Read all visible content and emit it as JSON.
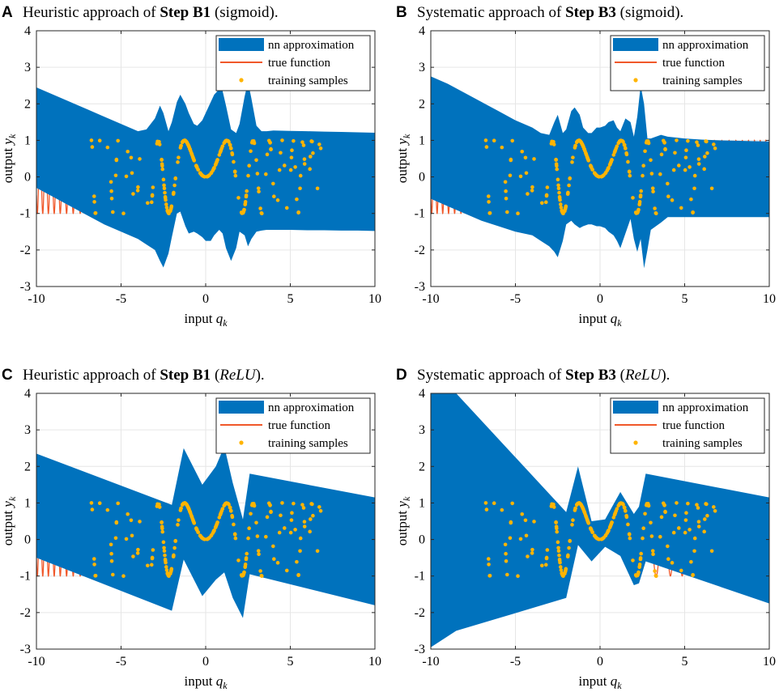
{
  "colors": {
    "band": "#0072bd",
    "truth": "#f0582a",
    "samples": "#ffb400",
    "grid": "#e6e6e6",
    "axis": "#262626"
  },
  "chart_data": [
    {
      "id": "A",
      "type": "line",
      "panel_letter": "A",
      "title_prefix": "Heuristic approach of ",
      "title_bold": "Step B1",
      "title_suffix_open": " (",
      "title_activation": "sigmoid",
      "title_suffix_close": ").",
      "activation_italic": false,
      "xlabel_text": "input ",
      "xlabel_var": "q",
      "xlabel_sub": "k",
      "ylabel_text": "output ",
      "ylabel_var": "y",
      "ylabel_sub": "k",
      "xlim": [
        -10,
        10
      ],
      "ylim": [
        -3,
        4
      ],
      "x_ticks": [
        -10,
        -5,
        0,
        5,
        10
      ],
      "y_ticks": [
        -3,
        -2,
        -1,
        0,
        1,
        2,
        3,
        4
      ],
      "x_tick_labels": [
        "-10",
        "-5",
        "0",
        "5",
        "10"
      ],
      "y_tick_labels": [
        "-3",
        "-2",
        "-1",
        "0",
        "1",
        "2",
        "3",
        "4"
      ],
      "legend": [
        "nn approximation",
        "true function",
        "training samples"
      ],
      "legend_location": "top-right",
      "band": {
        "x": [
          -10,
          -9,
          -8,
          -7,
          -6,
          -5,
          -4,
          -3.5,
          -3,
          -2.7,
          -2.5,
          -2.2,
          -2,
          -1.7,
          -1.5,
          -1.2,
          -1,
          -0.7,
          -0.5,
          -0.2,
          0,
          0.3,
          0.5,
          0.8,
          1,
          1.2,
          1.5,
          1.8,
          2,
          2.3,
          2.5,
          2.7,
          3,
          3.3,
          3.6,
          4,
          5,
          6,
          7,
          8,
          9,
          10
        ],
        "upper": [
          2.45,
          2.25,
          2.05,
          1.85,
          1.65,
          1.45,
          1.25,
          1.3,
          1.6,
          1.95,
          1.75,
          1.25,
          1.5,
          2.05,
          2.25,
          2.0,
          1.75,
          1.45,
          1.4,
          1.55,
          1.75,
          2.05,
          2.25,
          2.4,
          2.35,
          1.95,
          1.3,
          1.2,
          1.45,
          2.2,
          2.6,
          2.15,
          1.4,
          1.25,
          1.25,
          1.27,
          1.26,
          1.25,
          1.24,
          1.23,
          1.22,
          1.21
        ],
        "lower": [
          -0.3,
          -0.55,
          -0.8,
          -1.05,
          -1.3,
          -1.5,
          -1.7,
          -1.85,
          -2.0,
          -2.3,
          -2.48,
          -2.1,
          -1.65,
          -1.0,
          -0.95,
          -1.35,
          -1.55,
          -1.5,
          -1.55,
          -1.65,
          -1.75,
          -1.75,
          -1.6,
          -1.45,
          -1.55,
          -1.95,
          -2.3,
          -1.95,
          -1.5,
          -1.6,
          -1.9,
          -1.7,
          -1.5,
          -1.47,
          -1.45,
          -1.45,
          -1.45,
          -1.46,
          -1.46,
          -1.47,
          -1.47,
          -1.48
        ]
      }
    },
    {
      "id": "B",
      "type": "line",
      "panel_letter": "B",
      "title_prefix": "Systematic approach of ",
      "title_bold": "Step B3",
      "title_suffix_open": " (",
      "title_activation": "sigmoid",
      "title_suffix_close": ").",
      "activation_italic": false,
      "xlabel_text": "input ",
      "xlabel_var": "q",
      "xlabel_sub": "k",
      "ylabel_text": "output ",
      "ylabel_var": "y",
      "ylabel_sub": "k",
      "xlim": [
        -10,
        10
      ],
      "ylim": [
        -3,
        4
      ],
      "x_ticks": [
        -10,
        -5,
        0,
        5,
        10
      ],
      "y_ticks": [
        -3,
        -2,
        -1,
        0,
        1,
        2,
        3,
        4
      ],
      "x_tick_labels": [
        "-10",
        "-5",
        "0",
        "5",
        "10"
      ],
      "y_tick_labels": [
        "-3",
        "-2",
        "-1",
        "0",
        "1",
        "2",
        "3",
        "4"
      ],
      "legend": [
        "nn approximation",
        "true function",
        "training samples"
      ],
      "legend_location": "top-right",
      "band": {
        "x": [
          -10,
          -9,
          -8,
          -7,
          -6,
          -5,
          -4,
          -3.5,
          -3,
          -2.7,
          -2.5,
          -2.2,
          -2,
          -1.7,
          -1.5,
          -1.2,
          -1,
          -0.7,
          -0.5,
          -0.2,
          0,
          0.3,
          0.5,
          0.8,
          1,
          1.2,
          1.5,
          1.8,
          2,
          2.2,
          2.4,
          2.6,
          2.8,
          3,
          3.3,
          3.6,
          4,
          5,
          6,
          7,
          8,
          9,
          10
        ],
        "upper": [
          2.75,
          2.55,
          2.3,
          2.05,
          1.8,
          1.55,
          1.35,
          1.2,
          1.15,
          1.5,
          1.7,
          1.2,
          1.3,
          1.8,
          1.9,
          1.7,
          1.35,
          1.2,
          1.2,
          1.35,
          1.35,
          1.4,
          1.5,
          1.55,
          1.35,
          1.25,
          1.6,
          1.5,
          1.1,
          1.65,
          2.5,
          2.0,
          1.05,
          1.05,
          1.1,
          1.15,
          1.1,
          1.05,
          1.02,
          1.0,
          0.99,
          0.98,
          0.97
        ],
        "lower": [
          -0.6,
          -0.8,
          -1.0,
          -1.2,
          -1.35,
          -1.5,
          -1.6,
          -1.75,
          -1.9,
          -2.05,
          -2.2,
          -1.75,
          -1.3,
          -1.2,
          -1.3,
          -1.4,
          -1.35,
          -1.3,
          -1.3,
          -1.35,
          -1.35,
          -1.4,
          -1.5,
          -1.6,
          -1.75,
          -1.95,
          -1.55,
          -1.15,
          -1.7,
          -2.05,
          -1.7,
          -2.5,
          -2.0,
          -1.45,
          -1.35,
          -1.25,
          -1.1,
          -1.1,
          -1.1,
          -1.1,
          -1.1,
          -1.1,
          -1.1
        ]
      }
    },
    {
      "id": "C",
      "type": "line",
      "panel_letter": "C",
      "title_prefix": "Heuristic approach of ",
      "title_bold": "Step B1",
      "title_suffix_open": " (",
      "title_activation": "ReLU",
      "title_suffix_close": ").",
      "activation_italic": true,
      "xlabel_text": "input ",
      "xlabel_var": "q",
      "xlabel_sub": "k",
      "ylabel_text": "output ",
      "ylabel_var": "y",
      "ylabel_sub": "k",
      "xlim": [
        -10,
        10
      ],
      "ylim": [
        -3,
        4
      ],
      "x_ticks": [
        -10,
        -5,
        0,
        5,
        10
      ],
      "y_ticks": [
        -3,
        -2,
        -1,
        0,
        1,
        2,
        3,
        4
      ],
      "x_tick_labels": [
        "-10",
        "-5",
        "0",
        "5",
        "10"
      ],
      "y_tick_labels": [
        "-3",
        "-2",
        "-1",
        "0",
        "1",
        "2",
        "3",
        "4"
      ],
      "legend": [
        "nn approximation",
        "true function",
        "training samples"
      ],
      "legend_location": "top-right",
      "band": {
        "x": [
          -10,
          -2,
          -1.3,
          -0.2,
          0.6,
          1.1,
          1.6,
          2.2,
          2.6,
          10
        ],
        "upper": [
          2.35,
          0.95,
          2.5,
          1.5,
          2.0,
          2.55,
          1.55,
          0.55,
          1.8,
          1.15
        ],
        "lower": [
          -0.5,
          -1.95,
          -0.55,
          -1.55,
          -1.1,
          -0.9,
          -1.6,
          -2.15,
          -0.95,
          -1.8
        ]
      }
    },
    {
      "id": "D",
      "type": "line",
      "panel_letter": "D",
      "title_prefix": "Systematic approach of ",
      "title_bold": "Step B3",
      "title_suffix_open": " (",
      "title_activation": "ReLU",
      "title_suffix_close": ").",
      "activation_italic": true,
      "xlabel_text": "input ",
      "xlabel_var": "q",
      "xlabel_sub": "k",
      "ylabel_text": "output ",
      "ylabel_var": "y",
      "ylabel_sub": "k",
      "xlim": [
        -10,
        10
      ],
      "ylim": [
        -3,
        4
      ],
      "x_ticks": [
        -10,
        -5,
        0,
        5,
        10
      ],
      "y_ticks": [
        -3,
        -2,
        -1,
        0,
        1,
        2,
        3,
        4
      ],
      "x_tick_labels": [
        "-10",
        "-5",
        "0",
        "5",
        "10"
      ],
      "y_tick_labels": [
        "-3",
        "-2",
        "-1",
        "0",
        "1",
        "2",
        "3",
        "4"
      ],
      "legend": [
        "nn approximation",
        "true function",
        "training samples"
      ],
      "legend_location": "top-right",
      "band": {
        "x": [
          -10,
          -8.5,
          -2,
          -1.3,
          -0.5,
          0.3,
          1.2,
          2.0,
          2.3,
          2.7,
          10
        ],
        "upper": [
          4.0,
          4.0,
          0.75,
          2.0,
          0.5,
          0.55,
          1.3,
          0.7,
          0.9,
          1.8,
          1.15
        ],
        "lower": [
          -2.95,
          -2.5,
          -1.6,
          -0.15,
          -0.6,
          -0.2,
          -0.45,
          -1.25,
          -1.2,
          -0.6,
          -1.75
        ]
      }
    }
  ]
}
